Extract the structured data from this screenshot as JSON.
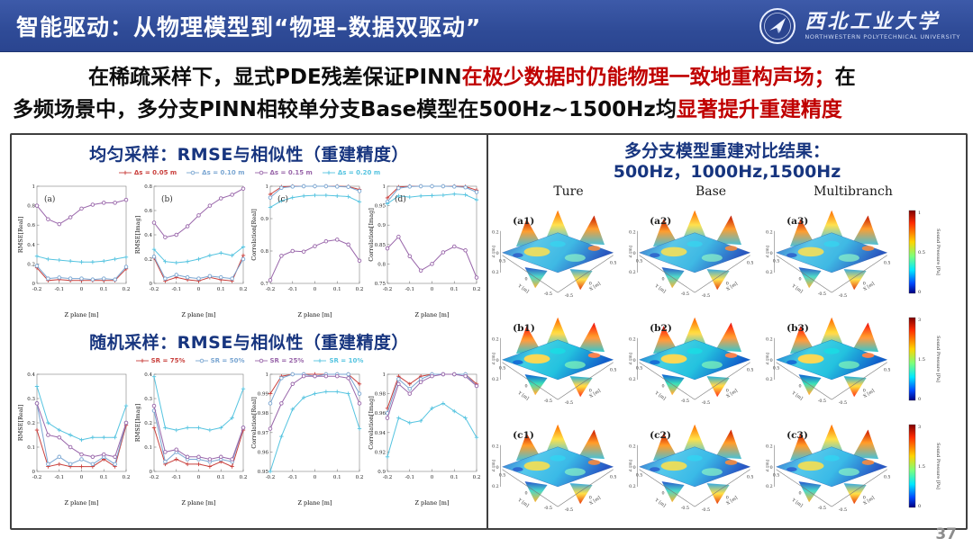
{
  "header": {
    "title": "智能驱动：从物理模型到“物理–数据双驱动”",
    "logo_cn": "西北工业大学",
    "logo_en": "NORTHWESTERN POLYTECHNICAL UNIVERSITY"
  },
  "summary": {
    "line1_black": "在稀疏采样下，显式PDE残差保证PINN",
    "line1_red": "在极少数据时仍能物理一致地重构声场；",
    "line1_tail": "在",
    "line2_black": "多频场景中，多分支PINN相较单分支Base模型在500Hz~1500Hz均",
    "line2_red": "显著提升重建精度"
  },
  "colors": {
    "header_bg": "#2f4b97",
    "title_navy": "#17357f",
    "highlight_red": "#c00000",
    "series_red": "#c9403d",
    "series_blue": "#7aa6d2",
    "series_purple": "#9966aa",
    "series_cyan": "#56c4e0"
  },
  "left_panel": {
    "section1_title": "均匀采样：RMSE与相似性（重建精度）",
    "section2_title": "随机采样：RMSE与相似性（重建精度）",
    "legend1": [
      {
        "label": "Δs = 0.05 m",
        "color": "#c9403d",
        "marker": "plus"
      },
      {
        "label": "Δs = 0.10 m",
        "color": "#7aa6d2",
        "marker": "circle"
      },
      {
        "label": "Δs = 0.15 m",
        "color": "#9966aa",
        "marker": "circle"
      },
      {
        "label": "Δs = 0.20 m",
        "color": "#56c4e0",
        "marker": "plus"
      }
    ],
    "legend2": [
      {
        "label": "SR = 75%",
        "color": "#c9403d",
        "marker": "plus"
      },
      {
        "label": "SR = 50%",
        "color": "#7aa6d2",
        "marker": "circle"
      },
      {
        "label": "SR = 25%",
        "color": "#9966aa",
        "marker": "circle"
      },
      {
        "label": "SR = 10%",
        "color": "#56c4e0",
        "marker": "plus"
      }
    ]
  },
  "chart_data": {
    "type": "line",
    "x": [
      -0.2,
      -0.15,
      -0.1,
      -0.05,
      0,
      0.05,
      0.1,
      0.15,
      0.2
    ],
    "xticks": [
      "-0.2",
      "-0.1",
      "0",
      "0.1",
      "0.2"
    ],
    "xtick_vals": [
      -0.2,
      -0.1,
      0,
      0.1,
      0.2
    ],
    "xlabel": "Z plane [m]",
    "uniform": [
      {
        "label": "(a)",
        "ylabel": "RMSE[Real]",
        "ylim": [
          0,
          1
        ],
        "yticks": [
          0,
          0.2,
          0.4,
          0.6,
          0.8,
          1
        ],
        "series": [
          {
            "name": "Δs = 0.05 m",
            "color": "#c9403d",
            "marker": "plus",
            "values": [
              0.16,
              0.03,
              0.04,
              0.03,
              0.03,
              0.03,
              0.03,
              0.03,
              0.15
            ]
          },
          {
            "name": "Δs = 0.10 m",
            "color": "#7aa6d2",
            "marker": "circle",
            "values": [
              0.18,
              0.05,
              0.06,
              0.05,
              0.05,
              0.04,
              0.05,
              0.04,
              0.17
            ]
          },
          {
            "name": "Δs = 0.15 m",
            "color": "#9966aa",
            "marker": "circle",
            "values": [
              0.8,
              0.66,
              0.61,
              0.68,
              0.77,
              0.81,
              0.83,
              0.83,
              0.86
            ]
          },
          {
            "name": "Δs = 0.20 m",
            "color": "#56c4e0",
            "marker": "plus",
            "values": [
              0.28,
              0.25,
              0.24,
              0.23,
              0.22,
              0.22,
              0.23,
              0.25,
              0.27
            ]
          }
        ]
      },
      {
        "label": "(b)",
        "ylabel": "RMSE[Imag]",
        "ylim": [
          0,
          0.8
        ],
        "yticks": [
          0,
          0.2,
          0.4,
          0.6,
          0.8
        ],
        "series": [
          {
            "name": "Δs = 0.05 m",
            "color": "#c9403d",
            "marker": "plus",
            "values": [
              0.21,
              0.02,
              0.05,
              0.03,
              0.02,
              0.05,
              0.03,
              0.02,
              0.23
            ]
          },
          {
            "name": "Δs = 0.10 m",
            "color": "#7aa6d2",
            "marker": "circle",
            "values": [
              0.22,
              0.04,
              0.07,
              0.05,
              0.04,
              0.06,
              0.05,
              0.04,
              0.2
            ]
          },
          {
            "name": "Δs = 0.15 m",
            "color": "#9966aa",
            "marker": "circle",
            "values": [
              0.5,
              0.38,
              0.4,
              0.47,
              0.56,
              0.64,
              0.7,
              0.73,
              0.78
            ]
          },
          {
            "name": "Δs = 0.20 m",
            "color": "#56c4e0",
            "marker": "plus",
            "values": [
              0.28,
              0.18,
              0.17,
              0.18,
              0.2,
              0.23,
              0.25,
              0.23,
              0.3
            ]
          }
        ]
      },
      {
        "label": "(c)",
        "ylabel": "Correlation[Real]",
        "ylim": [
          0.7,
          1
        ],
        "yticks": [
          0.7,
          0.8,
          0.9,
          1
        ],
        "series": [
          {
            "name": "Δs = 0.05 m",
            "color": "#c9403d",
            "marker": "plus",
            "values": [
              0.975,
              0.998,
              1,
              1,
              1,
              1,
              1,
              0.999,
              0.99
            ]
          },
          {
            "name": "Δs = 0.10 m",
            "color": "#7aa6d2",
            "marker": "circle",
            "values": [
              0.965,
              0.995,
              0.999,
              1,
              1,
              1,
              0.999,
              0.998,
              0.985
            ]
          },
          {
            "name": "Δs = 0.15 m",
            "color": "#9966aa",
            "marker": "circle",
            "values": [
              0.71,
              0.785,
              0.8,
              0.798,
              0.815,
              0.83,
              0.835,
              0.82,
              0.77
            ]
          },
          {
            "name": "Δs = 0.20 m",
            "color": "#56c4e0",
            "marker": "plus",
            "values": [
              0.935,
              0.955,
              0.965,
              0.97,
              0.972,
              0.972,
              0.97,
              0.968,
              0.952
            ]
          }
        ]
      },
      {
        "label": "(d)",
        "ylabel": "Correlation[Imag]",
        "ylim": [
          0.75,
          1
        ],
        "yticks": [
          0.75,
          0.8,
          0.85,
          0.9,
          0.95,
          1
        ],
        "series": [
          {
            "name": "Δs = 0.05 m",
            "color": "#c9403d",
            "marker": "plus",
            "values": [
              0.97,
              0.998,
              1,
              1,
              1,
              1,
              1,
              0.999,
              0.99
            ]
          },
          {
            "name": "Δs = 0.10 m",
            "color": "#7aa6d2",
            "marker": "circle",
            "values": [
              0.96,
              0.995,
              0.999,
              1,
              1,
              1,
              0.999,
              0.997,
              0.985
            ]
          },
          {
            "name": "Δs = 0.15 m",
            "color": "#9966aa",
            "marker": "circle",
            "values": [
              0.84,
              0.87,
              0.82,
              0.783,
              0.8,
              0.83,
              0.845,
              0.835,
              0.765
            ]
          },
          {
            "name": "Δs = 0.20 m",
            "color": "#56c4e0",
            "marker": "plus",
            "values": [
              0.955,
              0.975,
              0.972,
              0.975,
              0.976,
              0.977,
              0.98,
              0.978,
              0.965
            ]
          }
        ]
      }
    ],
    "random": [
      {
        "label": "",
        "ylabel": "RMSE[Real]",
        "ylim": [
          0,
          0.4
        ],
        "yticks": [
          0,
          0.1,
          0.2,
          0.3,
          0.4
        ],
        "series": [
          {
            "name": "SR = 75%",
            "color": "#c9403d",
            "marker": "plus",
            "values": [
              0.17,
              0.02,
              0.03,
              0.02,
              0.02,
              0.02,
              0.05,
              0.02,
              0.19
            ]
          },
          {
            "name": "SR = 50%",
            "color": "#7aa6d2",
            "marker": "circle",
            "values": [
              0.28,
              0.03,
              0.06,
              0.03,
              0.05,
              0.03,
              0.06,
              0.03,
              0.2
            ]
          },
          {
            "name": "SR = 25%",
            "color": "#9966aa",
            "marker": "circle",
            "values": [
              0.28,
              0.15,
              0.14,
              0.1,
              0.07,
              0.06,
              0.07,
              0.06,
              0.2
            ]
          },
          {
            "name": "SR = 10%",
            "color": "#56c4e0",
            "marker": "plus",
            "values": [
              0.35,
              0.2,
              0.17,
              0.15,
              0.13,
              0.14,
              0.14,
              0.14,
              0.27
            ]
          }
        ]
      },
      {
        "label": "",
        "ylabel": "RMSE[Imag]",
        "ylim": [
          0,
          0.4
        ],
        "yticks": [
          0,
          0.1,
          0.2,
          0.3,
          0.4
        ],
        "series": [
          {
            "name": "SR = 75%",
            "color": "#c9403d",
            "marker": "plus",
            "values": [
              0.18,
              0.03,
              0.05,
              0.03,
              0.03,
              0.02,
              0.04,
              0.02,
              0.17
            ]
          },
          {
            "name": "SR = 50%",
            "color": "#7aa6d2",
            "marker": "circle",
            "values": [
              0.25,
              0.04,
              0.08,
              0.05,
              0.05,
              0.04,
              0.05,
              0.04,
              0.18
            ]
          },
          {
            "name": "SR = 25%",
            "color": "#9966aa",
            "marker": "circle",
            "values": [
              0.27,
              0.08,
              0.09,
              0.06,
              0.06,
              0.05,
              0.06,
              0.05,
              0.18
            ]
          },
          {
            "name": "SR = 10%",
            "color": "#56c4e0",
            "marker": "plus",
            "values": [
              0.39,
              0.18,
              0.17,
              0.18,
              0.18,
              0.17,
              0.18,
              0.22,
              0.34
            ]
          }
        ]
      },
      {
        "label": "",
        "ylabel": "Correlation[Real]",
        "ylim": [
          0.95,
          1
        ],
        "yticks": [
          0.95,
          0.96,
          0.97,
          0.98,
          0.99,
          1
        ],
        "series": [
          {
            "name": "SR = 75%",
            "color": "#c9403d",
            "marker": "plus",
            "values": [
              0.99,
              0.999,
              1,
              1,
              1,
              1,
              1,
              1,
              0.995
            ]
          },
          {
            "name": "SR = 50%",
            "color": "#7aa6d2",
            "marker": "circle",
            "values": [
              0.985,
              0.998,
              1,
              1,
              0.999,
              1,
              1,
              1,
              0.99
            ]
          },
          {
            "name": "SR = 25%",
            "color": "#9966aa",
            "marker": "circle",
            "values": [
              0.972,
              0.985,
              0.995,
              0.999,
              0.999,
              0.999,
              0.999,
              0.998,
              0.985
            ]
          },
          {
            "name": "SR = 10%",
            "color": "#56c4e0",
            "marker": "plus",
            "values": [
              0.95,
              0.968,
              0.982,
              0.988,
              0.99,
              0.991,
              0.991,
              0.99,
              0.972
            ]
          }
        ]
      },
      {
        "label": "",
        "ylabel": "Correlation[Imag]",
        "ylim": [
          0.9,
          1
        ],
        "yticks": [
          0.9,
          0.92,
          0.94,
          0.96,
          0.98,
          1
        ],
        "series": [
          {
            "name": "SR = 75%",
            "color": "#c9403d",
            "marker": "plus",
            "values": [
              0.965,
              0.998,
              0.99,
              0.998,
              1,
              1,
              1,
              1,
              0.99
            ]
          },
          {
            "name": "SR = 50%",
            "color": "#7aa6d2",
            "marker": "circle",
            "values": [
              0.96,
              0.995,
              0.985,
              0.995,
              1,
              1,
              1,
              1,
              0.988
            ]
          },
          {
            "name": "SR = 25%",
            "color": "#9966aa",
            "marker": "circle",
            "values": [
              0.955,
              0.99,
              0.98,
              0.992,
              0.998,
              1,
              1,
              0.998,
              0.988
            ]
          },
          {
            "name": "SR = 10%",
            "color": "#56c4e0",
            "marker": "plus",
            "values": [
              0.915,
              0.955,
              0.95,
              0.952,
              0.965,
              0.97,
              0.962,
              0.955,
              0.935
            ]
          }
        ]
      }
    ]
  },
  "right_panel": {
    "title_line1": "多分支模型重建对比结果：",
    "title_line2": "500Hz，1000Hz,1500Hz",
    "columns": [
      "Ture",
      "Base",
      "Multibranch"
    ],
    "rows": [
      {
        "labels": [
          "(a1)",
          "(a2)",
          "(a3)"
        ],
        "colorbar_ticks": [
          "1",
          "0.5",
          "0"
        ]
      },
      {
        "labels": [
          "(b1)",
          "(b2)",
          "(b3)"
        ],
        "colorbar_ticks": [
          "3",
          "1.5",
          "0"
        ]
      },
      {
        "labels": [
          "(c1)",
          "(c2)",
          "(c3)"
        ],
        "colorbar_ticks": [
          "3",
          "1.5",
          "0"
        ]
      }
    ],
    "plot3d": {
      "xlabel": "X [m]",
      "ylabel": "Y [m]",
      "zlabel": "Z [m]",
      "zticks": [
        "0.2",
        "0",
        "-0.2"
      ],
      "yticks": [
        "0.5",
        "0",
        "-0.5"
      ],
      "xticks": [
        "-0.5",
        "0",
        "0.5"
      ],
      "colorbar_label": "Sound Pressure [Pa]"
    }
  },
  "page_number": "37"
}
